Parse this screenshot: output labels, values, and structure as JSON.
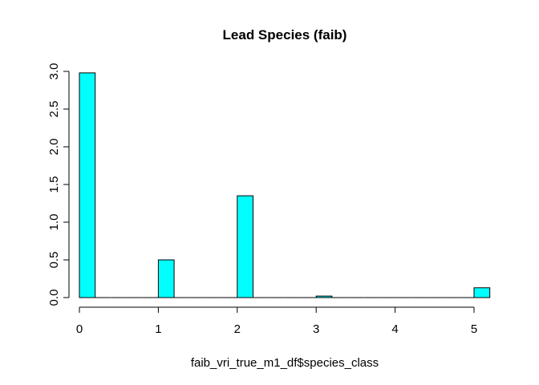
{
  "chart_data": {
    "type": "bar",
    "title": "Lead Species (faib)",
    "xlabel": "faib_vri_true_m1_df$species_class",
    "ylabel": "",
    "x_ticks": [
      "0",
      "1",
      "2",
      "3",
      "4",
      "5"
    ],
    "y_ticks": [
      "0.0",
      "0.5",
      "1.0",
      "1.5",
      "2.0",
      "2.5",
      "3.0"
    ],
    "xlim": [
      0,
      5.2
    ],
    "ylim": [
      0,
      3.0
    ],
    "bin_width": 0.2,
    "bins": [
      {
        "x0": 0.0,
        "x1": 0.2,
        "value": 2.98
      },
      {
        "x0": 0.2,
        "x1": 0.4,
        "value": 0
      },
      {
        "x0": 0.4,
        "x1": 0.6,
        "value": 0
      },
      {
        "x0": 0.6,
        "x1": 0.8,
        "value": 0
      },
      {
        "x0": 0.8,
        "x1": 1.0,
        "value": 0
      },
      {
        "x0": 1.0,
        "x1": 1.2,
        "value": 0.5
      },
      {
        "x0": 1.2,
        "x1": 1.4,
        "value": 0
      },
      {
        "x0": 1.4,
        "x1": 1.6,
        "value": 0
      },
      {
        "x0": 1.6,
        "x1": 1.8,
        "value": 0
      },
      {
        "x0": 1.8,
        "x1": 2.0,
        "value": 0
      },
      {
        "x0": 2.0,
        "x1": 2.2,
        "value": 1.35
      },
      {
        "x0": 2.2,
        "x1": 2.4,
        "value": 0
      },
      {
        "x0": 2.4,
        "x1": 2.6,
        "value": 0
      },
      {
        "x0": 2.6,
        "x1": 2.8,
        "value": 0
      },
      {
        "x0": 2.8,
        "x1": 3.0,
        "value": 0
      },
      {
        "x0": 3.0,
        "x1": 3.2,
        "value": 0.02
      },
      {
        "x0": 3.2,
        "x1": 3.4,
        "value": 0
      },
      {
        "x0": 3.4,
        "x1": 3.6,
        "value": 0
      },
      {
        "x0": 3.6,
        "x1": 3.8,
        "value": 0
      },
      {
        "x0": 3.8,
        "x1": 4.0,
        "value": 0
      },
      {
        "x0": 4.0,
        "x1": 4.2,
        "value": 0
      },
      {
        "x0": 4.2,
        "x1": 4.4,
        "value": 0
      },
      {
        "x0": 4.4,
        "x1": 4.6,
        "value": 0
      },
      {
        "x0": 4.6,
        "x1": 4.8,
        "value": 0
      },
      {
        "x0": 4.8,
        "x1": 5.0,
        "value": 0
      },
      {
        "x0": 5.0,
        "x1": 5.2,
        "value": 0.13
      }
    ],
    "bar_color": "#00FFFF",
    "border_color": "#000000",
    "grid": false,
    "legend": "none"
  }
}
